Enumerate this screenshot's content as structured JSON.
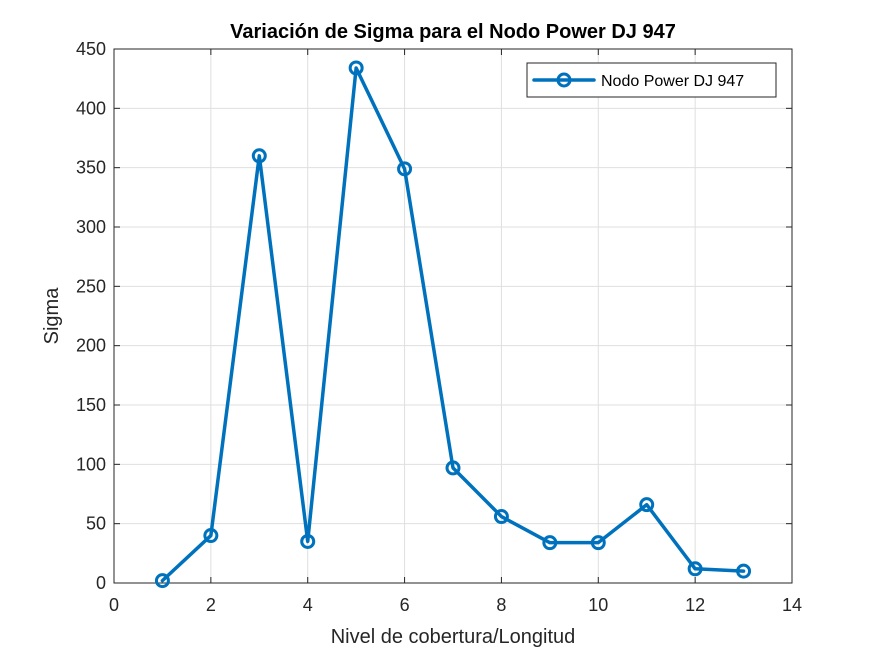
{
  "chart_data": {
    "type": "line",
    "title": "Variación de Sigma para el Nodo Power DJ 947",
    "xlabel": "Nivel de cobertura/Longitud",
    "ylabel": "Sigma",
    "xlim": [
      0,
      14
    ],
    "ylim": [
      0,
      450
    ],
    "xticks": [
      0,
      2,
      4,
      6,
      8,
      10,
      12,
      14
    ],
    "yticks": [
      0,
      50,
      100,
      150,
      200,
      250,
      300,
      350,
      400,
      450
    ],
    "grid": true,
    "legend_position": "top-right",
    "series": [
      {
        "name": "Nodo Power DJ 947",
        "color": "#0072bd",
        "marker": "circle",
        "x": [
          1,
          2,
          3,
          4,
          5,
          6,
          7,
          8,
          9,
          10,
          11,
          12,
          13
        ],
        "y": [
          2,
          40,
          360,
          35,
          434,
          349,
          97,
          56,
          34,
          34,
          66,
          12,
          10
        ]
      }
    ]
  }
}
